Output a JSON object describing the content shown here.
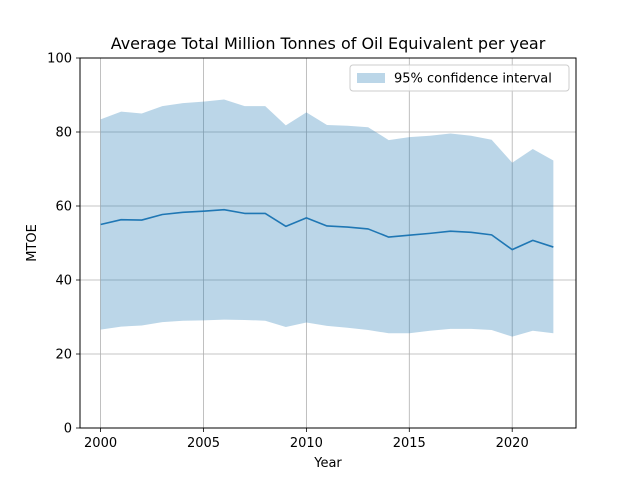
{
  "chart_data": {
    "type": "line",
    "title": "Average Total Million Tonnes of Oil Equivalent per year",
    "xlabel": "Year",
    "ylabel": "MTOE",
    "xlim": [
      1999,
      2023.1
    ],
    "ylim": [
      0,
      100
    ],
    "xticks": [
      2000,
      2005,
      2010,
      2015,
      2020
    ],
    "yticks": [
      0,
      20,
      40,
      60,
      80,
      100
    ],
    "grid": true,
    "legend_position": "top-right",
    "x": [
      2000,
      2001,
      2002,
      2003,
      2004,
      2005,
      2006,
      2007,
      2008,
      2009,
      2010,
      2011,
      2012,
      2013,
      2014,
      2015,
      2016,
      2017,
      2018,
      2019,
      2020,
      2021,
      2022
    ],
    "series": [
      {
        "values": [
          55.0,
          56.3,
          56.2,
          57.7,
          58.3,
          58.6,
          59.0,
          58.0,
          58.0,
          54.5,
          56.8,
          54.6,
          54.3,
          53.8,
          51.6,
          52.1,
          52.6,
          53.2,
          52.9,
          52.2,
          48.2,
          50.7,
          48.9
        ],
        "color": "#1f77b4"
      }
    ],
    "bands": [
      {
        "name": "95% confidence interval",
        "color": "#1f77b4",
        "opacity": 0.3,
        "lower": [
          26.6,
          27.4,
          27.7,
          28.6,
          29.0,
          29.1,
          29.3,
          29.2,
          29.0,
          27.3,
          28.5,
          27.6,
          27.1,
          26.5,
          25.6,
          25.6,
          26.3,
          26.8,
          26.8,
          26.5,
          24.7,
          26.3,
          25.6
        ],
        "upper": [
          83.4,
          85.5,
          85.0,
          87.0,
          87.8,
          88.2,
          88.8,
          87.0,
          87.0,
          81.8,
          85.3,
          81.9,
          81.7,
          81.3,
          77.8,
          78.6,
          79.0,
          79.6,
          79.0,
          77.9,
          71.7,
          75.4,
          72.3
        ]
      }
    ]
  }
}
